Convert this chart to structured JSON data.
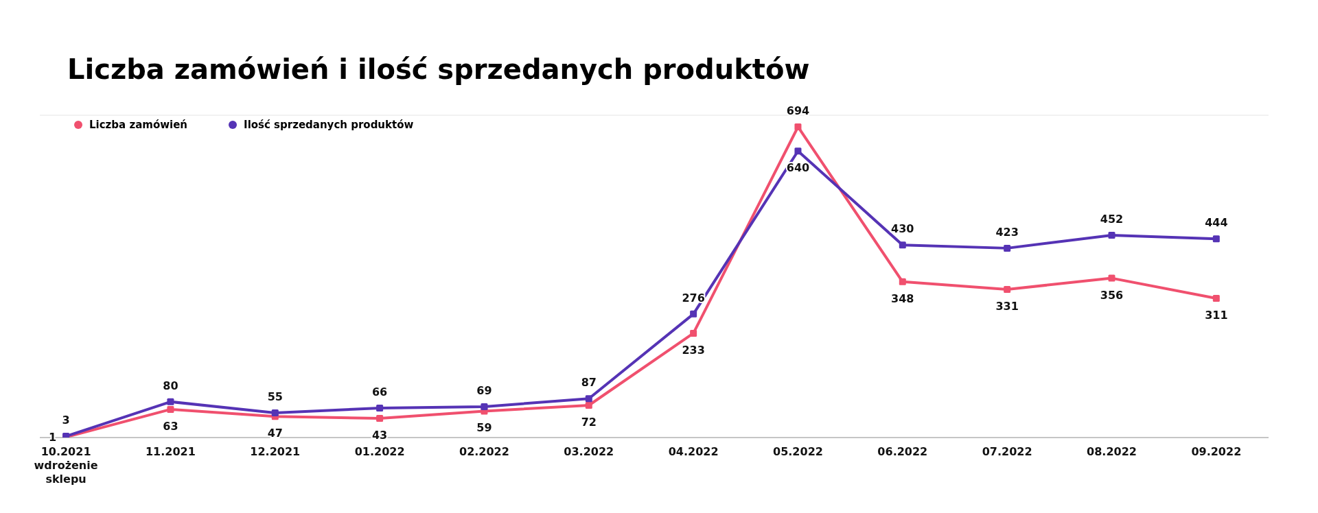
{
  "chart_data": {
    "type": "line",
    "title": "Liczba zamówień i ilość sprzedanych produktów",
    "categories": [
      "10.2021\nwdrożenie\nsklepu",
      "11.2021",
      "12.2021",
      "01.2022",
      "02.2022",
      "03.2022",
      "04.2022",
      "05.2022",
      "06.2022",
      "07.2022",
      "08.2022",
      "09.2022"
    ],
    "series": [
      {
        "name": "Liczba zamówień",
        "color": "#f0506e",
        "values": [
          1,
          63,
          47,
          43,
          59,
          72,
          233,
          694,
          348,
          331,
          356,
          311
        ]
      },
      {
        "name": "Ilość sprzedanych produktów",
        "color": "#5533b5",
        "values": [
          3,
          80,
          55,
          66,
          69,
          87,
          276,
          640,
          430,
          423,
          452,
          444
        ]
      }
    ],
    "ylim": [
      0,
      720
    ],
    "grid": "y",
    "tick_labels": "x",
    "legend": "top left",
    "marker": "square",
    "line_style": "solid",
    "data_labels": true
  }
}
